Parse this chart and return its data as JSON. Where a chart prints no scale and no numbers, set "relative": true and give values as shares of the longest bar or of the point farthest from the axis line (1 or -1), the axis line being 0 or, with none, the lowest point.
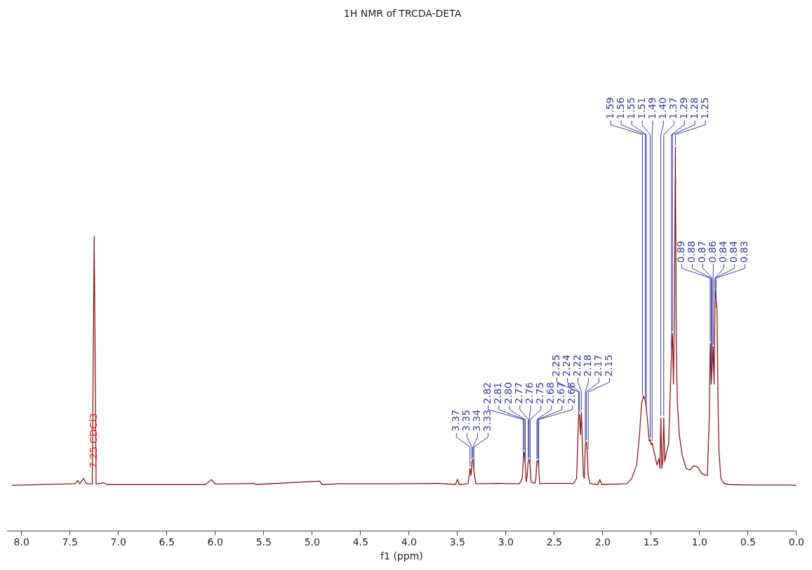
{
  "chart_data": {
    "type": "line",
    "title": "1H NMR of TRCDA-DETA",
    "xlabel": "f1 (ppm)",
    "relative": true,
    "tick_labels": "x",
    "grid": false,
    "legend": false,
    "xlim": [
      8.15,
      0
    ],
    "xticks": [
      {
        "value": 8,
        "label": "8.0"
      },
      {
        "value": 7.5,
        "label": "7.5"
      },
      {
        "value": 7,
        "label": "7.0"
      },
      {
        "value": 6.5,
        "label": "6.5"
      },
      {
        "value": 6,
        "label": "6.0"
      },
      {
        "value": 5.5,
        "label": "5.5"
      },
      {
        "value": 5,
        "label": "5.0"
      },
      {
        "value": 4.5,
        "label": "4.5"
      },
      {
        "value": 4,
        "label": "4.0"
      },
      {
        "value": 3.5,
        "label": "3.5"
      },
      {
        "value": 3,
        "label": "3.0"
      },
      {
        "value": 2.5,
        "label": "2.5"
      },
      {
        "value": 2,
        "label": "2.0"
      },
      {
        "value": 1.5,
        "label": "1.5"
      },
      {
        "value": 1,
        "label": "1.0"
      },
      {
        "value": 0.5,
        "label": "0.5"
      },
      {
        "value": 0,
        "label": "0.0"
      }
    ],
    "series": [
      {
        "color": "#8b1a1a",
        "x": [
          8.1,
          7.45,
          7.42,
          7.4,
          7.36,
          7.33,
          7.27,
          7.25,
          7.23,
          7.15,
          7.12,
          6.1,
          6.04,
          6.0,
          5.6,
          5.58,
          4.92,
          4.9,
          4.7,
          4.2,
          3.7,
          3.52,
          3.5,
          3.48,
          3.39,
          3.37,
          3.36,
          3.35,
          3.34,
          3.33,
          3.31,
          3.1,
          2.86,
          2.83,
          2.82,
          2.81,
          2.8,
          2.79,
          2.78,
          2.77,
          2.76,
          2.75,
          2.74,
          2.7,
          2.69,
          2.68,
          2.67,
          2.66,
          2.65,
          2.6,
          2.3,
          2.27,
          2.25,
          2.24,
          2.23,
          2.22,
          2.2,
          2.19,
          2.18,
          2.17,
          2.16,
          2.15,
          2.13,
          2.05,
          2.03,
          2.01,
          1.75,
          1.7,
          1.65,
          1.62,
          1.6,
          1.58,
          1.56,
          1.54,
          1.52,
          1.51,
          1.5,
          1.49,
          1.47,
          1.44,
          1.42,
          1.41,
          1.4,
          1.39,
          1.38,
          1.37,
          1.36,
          1.34,
          1.32,
          1.3,
          1.29,
          1.28,
          1.27,
          1.26,
          1.25,
          1.24,
          1.23,
          1.21,
          1.18,
          1.14,
          1.1,
          1.06,
          1.02,
          0.98,
          0.94,
          0.92,
          0.9,
          0.89,
          0.88,
          0.87,
          0.86,
          0.85,
          0.84,
          0.83,
          0.82,
          0.81,
          0.8,
          0.78,
          0.75,
          0.7,
          0.5,
          0.1,
          0
        ],
        "values": [
          0.119,
          0.123,
          0.132,
          0.123,
          0.137,
          0.123,
          0.122,
          0.767,
          0.122,
          0.126,
          0.121,
          0.121,
          0.134,
          0.122,
          0.124,
          0.121,
          0.13,
          0.121,
          0.123,
          0.123,
          0.124,
          0.121,
          0.135,
          0.121,
          0.123,
          0.163,
          0.145,
          0.181,
          0.186,
          0.154,
          0.123,
          0.124,
          0.123,
          0.137,
          0.189,
          0.206,
          0.172,
          0.128,
          0.145,
          0.181,
          0.186,
          0.172,
          0.128,
          0.124,
          0.137,
          0.181,
          0.184,
          0.163,
          0.123,
          0.124,
          0.124,
          0.137,
          0.295,
          0.304,
          0.251,
          0.31,
          0.145,
          0.137,
          0.225,
          0.232,
          0.207,
          0.145,
          0.123,
          0.121,
          0.134,
          0.121,
          0.123,
          0.137,
          0.172,
          0.251,
          0.33,
          0.352,
          0.339,
          0.295,
          0.234,
          0.238,
          0.225,
          0.229,
          0.207,
          0.172,
          0.189,
          0.163,
          0.295,
          0.163,
          0.181,
          0.295,
          0.181,
          0.207,
          0.225,
          0.383,
          0.471,
          0.515,
          0.383,
          0.56,
          1,
          0.471,
          0.339,
          0.251,
          0.198,
          0.163,
          0.159,
          0.17,
          0.167,
          0.15,
          0.145,
          0.145,
          0.295,
          0.489,
          0.383,
          0.427,
          0.48,
          0.383,
          0.626,
          0.604,
          0.577,
          0.339,
          0.207,
          0.137,
          0.124,
          0.121,
          0.12,
          0.12,
          0.119
        ]
      }
    ],
    "annotations": [
      {
        "text": "7.25 CDCl3",
        "x": 7.25,
        "y": 0.163
      },
      {
        "text": "3.37",
        "x": 3.37,
        "y": 0.163
      },
      {
        "text": "3.35",
        "x": 3.35,
        "y": 0.181
      },
      {
        "text": "3.34",
        "x": 3.34,
        "y": 0.186
      },
      {
        "text": "3.33",
        "x": 3.33,
        "y": 0.154
      },
      {
        "text": "2.82",
        "x": 2.82,
        "y": 0.189
      },
      {
        "text": "2.81",
        "x": 2.81,
        "y": 0.206
      },
      {
        "text": "2.80",
        "x": 2.8,
        "y": 0.172
      },
      {
        "text": "2.77",
        "x": 2.77,
        "y": 0.181
      },
      {
        "text": "2.76",
        "x": 2.76,
        "y": 0.186
      },
      {
        "text": "2.75",
        "x": 2.75,
        "y": 0.172
      },
      {
        "text": "2.68",
        "x": 2.68,
        "y": 0.181
      },
      {
        "text": "2.67",
        "x": 2.67,
        "y": 0.184
      },
      {
        "text": "2.66",
        "x": 2.66,
        "y": 0.163
      },
      {
        "text": "2.25",
        "x": 2.25,
        "y": 0.295
      },
      {
        "text": "2.24",
        "x": 2.24,
        "y": 0.304
      },
      {
        "text": "2.22",
        "x": 2.22,
        "y": 0.31
      },
      {
        "text": "2.18",
        "x": 2.18,
        "y": 0.225
      },
      {
        "text": "2.17",
        "x": 2.17,
        "y": 0.232
      },
      {
        "text": "2.15",
        "x": 2.15,
        "y": 0.207
      },
      {
        "text": "1.59",
        "x": 1.59,
        "y": 0.348
      },
      {
        "text": "1.56",
        "x": 1.56,
        "y": 0.339
      },
      {
        "text": "1.55",
        "x": 1.55,
        "y": 0.313
      },
      {
        "text": "1.51",
        "x": 1.51,
        "y": 0.238
      },
      {
        "text": "1.49",
        "x": 1.49,
        "y": 0.229
      },
      {
        "text": "1.40",
        "x": 1.4,
        "y": 0.295
      },
      {
        "text": "1.37",
        "x": 1.37,
        "y": 0.295
      },
      {
        "text": "1.29",
        "x": 1.29,
        "y": 0.471
      },
      {
        "text": "1.28",
        "x": 1.28,
        "y": 0.515
      },
      {
        "text": "1.25",
        "x": 1.25,
        "y": 1
      },
      {
        "text": "0.89",
        "x": 0.89,
        "y": 0.489
      },
      {
        "text": "0.88",
        "x": 0.88,
        "y": 0.383
      },
      {
        "text": "0.87",
        "x": 0.87,
        "y": 0.427
      },
      {
        "text": "0.86",
        "x": 0.86,
        "y": 0.48
      },
      {
        "text": "0.84",
        "x": 0.84,
        "y": 0.626
      },
      {
        "text": "0.84",
        "x": 0.84,
        "y": 0.604
      },
      {
        "text": "0.83",
        "x": 0.83,
        "y": 0.577
      }
    ]
  }
}
